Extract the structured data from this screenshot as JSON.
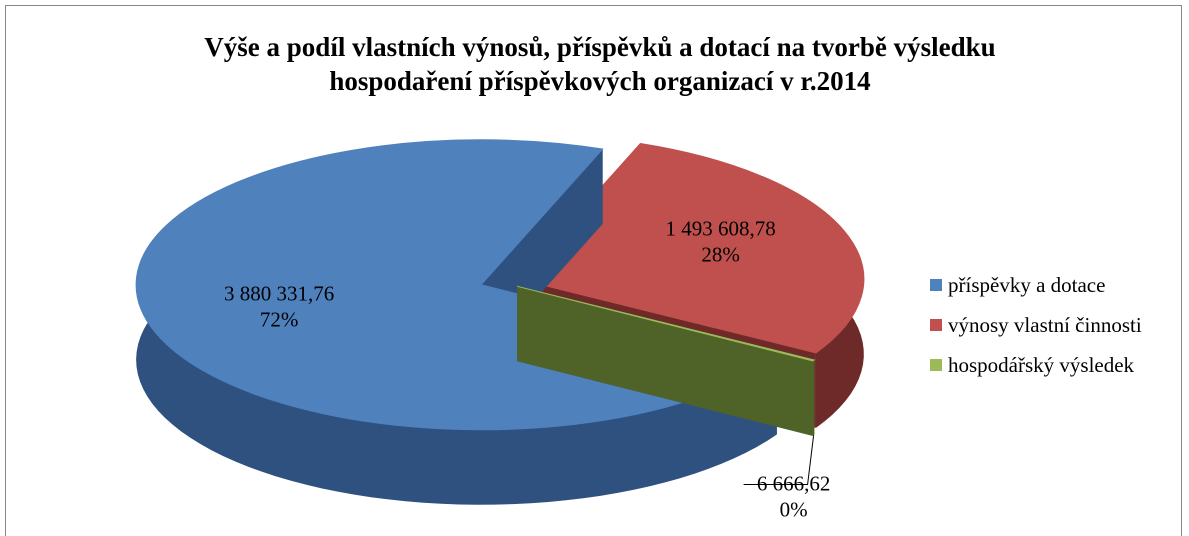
{
  "chart_data": {
    "type": "pie3d",
    "title": "Výše a podíl vlastních výnosů, příspěvků a dotací na tvorbě výsledku hospodaření příspěvkových organizací v r.2014",
    "categories": [
      "příspěvky a dotace",
      "výnosy vlastní činnosti",
      "hospodářský výsledek"
    ],
    "values": [
      3880331.76,
      1493608.78,
      6666.62
    ],
    "value_labels": [
      "3 880 331,76",
      "1 493 608,78",
      "6 666,62"
    ],
    "percents": [
      72,
      28,
      0
    ],
    "percent_labels": [
      "72%",
      "28%",
      "0%"
    ],
    "colors": [
      "#4f81bd",
      "#c0504d",
      "#9bbb59"
    ],
    "side_colors": [
      "#2f5180",
      "#6e2a28",
      "#4f6228"
    ],
    "legend": "right"
  }
}
